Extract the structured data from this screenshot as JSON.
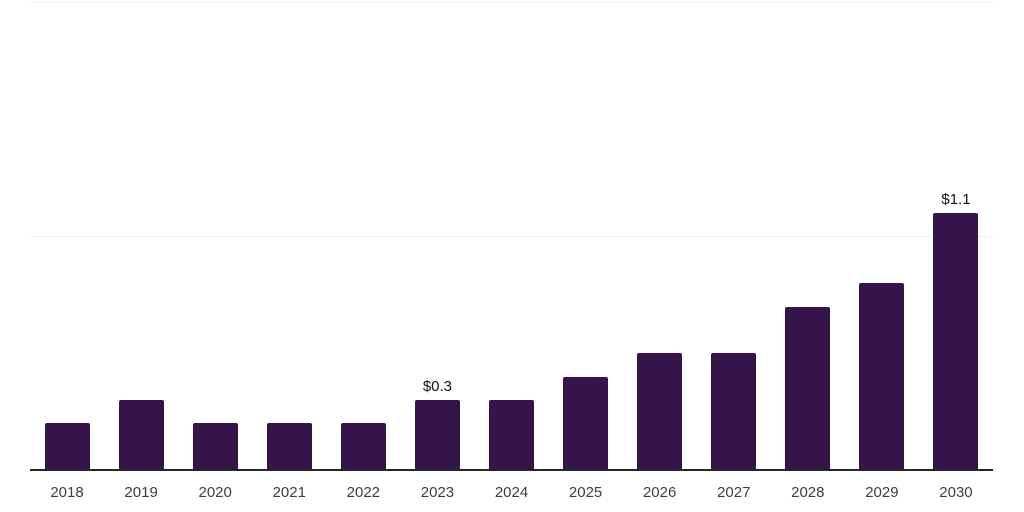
{
  "chart_data": {
    "type": "bar",
    "title": "",
    "xlabel": "",
    "ylabel": "",
    "categories": [
      "2018",
      "2019",
      "2020",
      "2021",
      "2022",
      "2023",
      "2024",
      "2025",
      "2026",
      "2027",
      "2028",
      "2029",
      "2030"
    ],
    "values": [
      0.2,
      0.3,
      0.2,
      0.2,
      0.2,
      0.3,
      0.3,
      0.4,
      0.5,
      0.5,
      0.7,
      0.8,
      1.1
    ],
    "data_labels": [
      "",
      "",
      "",
      "",
      "",
      "$0.3",
      "",
      "",
      "",
      "",
      "",
      "",
      "$1.1"
    ],
    "ylim": [
      0,
      2.0
    ],
    "gridline_values": [
      1.0,
      2.0
    ],
    "grid": true,
    "legend": false,
    "colors": {
      "bar": "#34144a",
      "axis_line": "#262626",
      "gridline": "#f0f0f1",
      "data_label_text": "#111111",
      "tick_text": "#3d3d3d",
      "background": "#ffffff"
    }
  }
}
